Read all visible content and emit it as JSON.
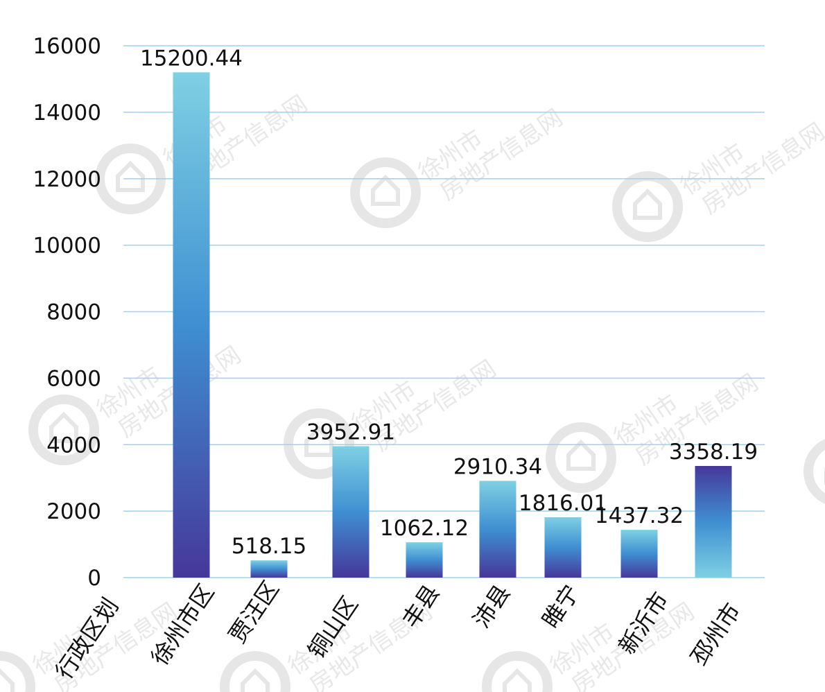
{
  "chart_data": {
    "type": "bar",
    "x_axis_title": "行政区划",
    "categories": [
      "徐州市区",
      "贾汪区",
      "铜山区",
      "丰县",
      "沛县",
      "睢宁",
      "新沂市",
      "邳州市"
    ],
    "values": [
      15200.44,
      518.15,
      3952.91,
      1062.12,
      2910.34,
      1816.01,
      1437.32,
      3358.19
    ],
    "value_labels": [
      "15200.44",
      "518.15",
      "3952.91",
      "1062.12",
      "2910.34",
      "1816.01",
      "1437.32",
      "3358.19"
    ],
    "ylim": [
      0,
      16000
    ],
    "yticks": [
      "0",
      "2000",
      "4000",
      "6000",
      "8000",
      "10000",
      "12000",
      "14000",
      "16000"
    ],
    "grid": true,
    "legend": "none",
    "colors": {
      "bar_light": "#7fd0e3",
      "bar_mid": "#3f8fd2",
      "bar_dark": "#46379a",
      "grid": "#9fd3e6",
      "text": "#111111"
    },
    "watermark": {
      "line1": "徐州市",
      "line2": "房地产信息网",
      "icon": "house-logo-icon"
    }
  }
}
